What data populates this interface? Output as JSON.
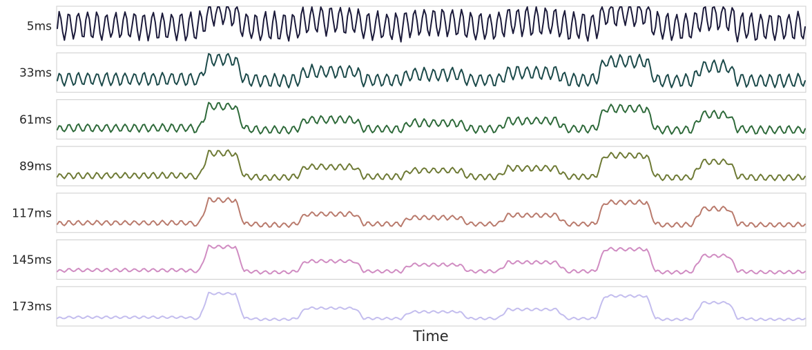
{
  "chart_data": {
    "type": "line",
    "xlabel": "Time",
    "grid": false,
    "legend": "none",
    "series": [
      {
        "name": "5ms",
        "color": "#1b1a3a",
        "amplitude": 0.44
      },
      {
        "name": "33ms",
        "color": "#1c4a4a",
        "amplitude": 0.2
      },
      {
        "name": "61ms",
        "color": "#2e6a3a",
        "amplitude": 0.12
      },
      {
        "name": "89ms",
        "color": "#6e7a35",
        "amplitude": 0.09
      },
      {
        "name": "117ms",
        "color": "#b97a6c",
        "amplitude": 0.07
      },
      {
        "name": "145ms",
        "color": "#d08cc2",
        "amplitude": 0.05
      },
      {
        "name": "173ms",
        "color": "#c3bdee",
        "amplitude": 0.035
      }
    ],
    "activity_envelope": [
      {
        "from": 0.0,
        "to": 0.185,
        "level": 0.12
      },
      {
        "from": 0.19,
        "to": 0.25,
        "level": 0.9
      },
      {
        "from": 0.26,
        "to": 0.32,
        "level": 0.05
      },
      {
        "from": 0.32,
        "to": 0.41,
        "level": 0.42
      },
      {
        "from": 0.42,
        "to": 0.46,
        "level": 0.08
      },
      {
        "from": 0.46,
        "to": 0.55,
        "level": 0.3
      },
      {
        "from": 0.55,
        "to": 0.59,
        "level": 0.08
      },
      {
        "from": 0.59,
        "to": 0.68,
        "level": 0.38
      },
      {
        "from": 0.69,
        "to": 0.72,
        "level": 0.08
      },
      {
        "from": 0.72,
        "to": 0.8,
        "level": 0.82
      },
      {
        "from": 0.8,
        "to": 0.85,
        "level": 0.05
      },
      {
        "from": 0.85,
        "to": 0.91,
        "level": 0.6
      },
      {
        "from": 0.92,
        "to": 1.0,
        "level": 0.05
      }
    ],
    "oscillation_period": 0.0125
  }
}
